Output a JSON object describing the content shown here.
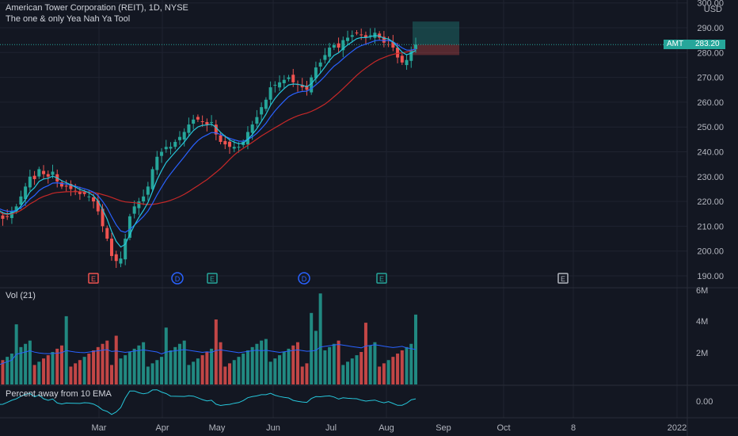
{
  "header": {
    "title": "American Tower Corporation (REIT), 1D, NYSE",
    "subtitle": "The one & only Yea Nah Ya Tool"
  },
  "last_price": {
    "symbol": "AMT",
    "value": "283.20"
  },
  "chart_data": {
    "type": "candlestick",
    "price_axis": {
      "ticks": [
        "190.00",
        "200.00",
        "210.00",
        "220.00",
        "230.00",
        "240.00",
        "250.00",
        "260.00",
        "270.00",
        "280.00",
        "290.00",
        "300.00"
      ],
      "currency": "USD"
    },
    "time_axis": {
      "labels": [
        "Mar",
        "Apr",
        "May",
        "Jun",
        "Jul",
        "Aug",
        "Sep",
        "Oct",
        "8",
        "2022"
      ]
    },
    "closes": [
      218,
      214,
      213,
      214,
      216,
      218,
      222,
      226,
      230,
      229,
      233,
      231,
      230,
      232,
      228,
      226,
      226,
      225,
      224,
      223,
      223,
      222,
      220,
      216,
      210,
      205,
      198,
      196,
      197,
      205,
      214,
      218,
      220,
      222,
      226,
      233,
      238,
      240,
      242,
      242,
      244,
      246,
      248,
      251,
      253,
      253,
      252,
      251,
      252,
      247,
      244,
      243,
      242,
      242,
      242,
      244,
      248,
      251,
      254,
      258,
      261,
      266,
      267,
      268,
      269,
      270,
      268,
      267,
      266,
      265,
      270,
      274,
      276,
      279,
      282,
      283,
      282,
      285,
      286,
      287,
      288,
      287,
      286,
      287,
      288,
      286,
      284,
      285,
      282,
      278,
      276,
      277,
      281,
      283.2
    ],
    "ema_fast": {
      "label": "10 EMA"
    },
    "events": [
      {
        "label": "E",
        "kind": "earnings",
        "color": "#ef5350"
      },
      {
        "label": "D",
        "kind": "dividend",
        "color": "#2962ff"
      },
      {
        "label": "E",
        "kind": "earnings",
        "color": "#26a69a"
      },
      {
        "label": "D",
        "kind": "dividend",
        "color": "#2962ff"
      },
      {
        "label": "E",
        "kind": "earnings",
        "color": "#26a69a"
      },
      {
        "label": "E",
        "kind": "earnings",
        "color": "#b2b5be"
      }
    ],
    "volume": {
      "label": "Vol (21)",
      "axis_ticks": [
        "2M",
        "4M",
        "6M"
      ]
    },
    "oscillator": {
      "label": "Percent away from 10 EMA",
      "axis_ticks": [
        "0.00"
      ]
    },
    "position_tool": {
      "entry": 283.2,
      "target": 292.5,
      "stop": 279
    }
  },
  "colors": {
    "up": "#26a69a",
    "down": "#ef5350",
    "ema_fast": "#26c6da",
    "ema_slow": "#2962ff",
    "sma": "#c62828",
    "osc": "#26c6da",
    "grid": "#1f2330",
    "bg": "#131722"
  }
}
